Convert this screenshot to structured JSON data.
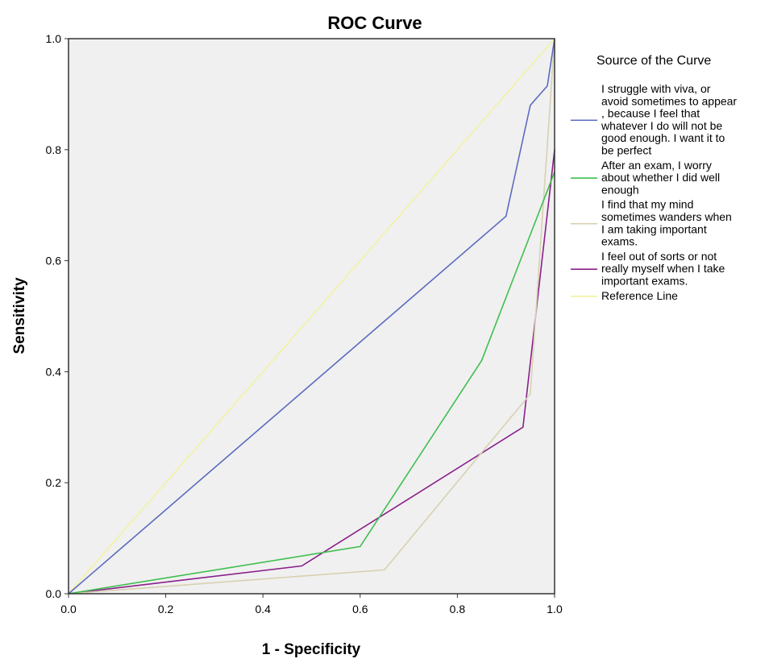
{
  "chart_data": {
    "type": "line",
    "title": "ROC Curve",
    "xlabel": "1 - Specificity",
    "ylabel": "Sensitivity",
    "xlim": [
      0,
      1
    ],
    "ylim": [
      0,
      1
    ],
    "x_ticks": [
      "0.0",
      "0.2",
      "0.4",
      "0.6",
      "0.8",
      "1.0"
    ],
    "y_ticks": [
      "0.0",
      "0.2",
      "0.4",
      "0.6",
      "0.8",
      "1.0"
    ],
    "grid": false,
    "plot_background": "#f0f0f0",
    "legend": {
      "title": "Source of the Curve",
      "placement": "right"
    },
    "series": [
      {
        "name": "I struggle with viva, or avoid sometimes to appear , because I feel that whatever I do will not be good enough. I want it to be perfect",
        "name_lines": [
          "I struggle with viva, or",
          "avoid sometimes to appear",
          ", because I feel that",
          "whatever I do will not be",
          "good enough. I want it to",
          "be perfect"
        ],
        "color": "#5b6bbf",
        "points": [
          [
            0,
            0
          ],
          [
            0.9,
            0.68
          ],
          [
            0.95,
            0.88
          ],
          [
            0.985,
            0.915
          ],
          [
            1.0,
            1.0
          ]
        ]
      },
      {
        "name": "After an exam, I worry about whether I did well enough",
        "name_lines": [
          "After an exam, I worry",
          "about whether I did well",
          "enough"
        ],
        "color": "#3fbf4f",
        "points": [
          [
            0,
            0
          ],
          [
            0.6,
            0.085
          ],
          [
            0.85,
            0.42
          ],
          [
            1.0,
            0.76
          ]
        ]
      },
      {
        "name": "I find that my mind sometimes wanders when I am taking important exams.",
        "name_lines": [
          "I find that my mind",
          "sometimes wanders when",
          "I am taking important",
          "exams."
        ],
        "color": "#d7d1b2",
        "points": [
          [
            0,
            0
          ],
          [
            0.65,
            0.043
          ],
          [
            0.95,
            0.36
          ],
          [
            1.0,
            1.0
          ]
        ]
      },
      {
        "name": "I feel out of sorts or not really myself when I take important exams.",
        "name_lines": [
          "I feel out of sorts or not",
          "really myself when I take",
          "important exams."
        ],
        "color": "#8a1f8a",
        "points": [
          [
            0,
            0
          ],
          [
            0.48,
            0.05
          ],
          [
            0.935,
            0.3
          ],
          [
            1.0,
            0.8
          ]
        ]
      },
      {
        "name": "Reference Line",
        "name_lines": [
          "Reference Line"
        ],
        "color": "#f2f2a2",
        "points": [
          [
            0,
            0
          ],
          [
            1,
            1
          ]
        ]
      }
    ]
  }
}
